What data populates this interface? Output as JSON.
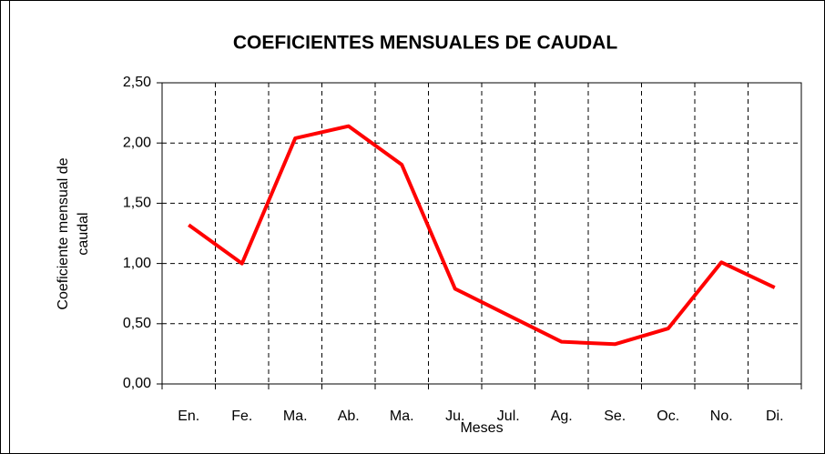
{
  "chart_data": {
    "type": "line",
    "title": "COEFICIENTES MENSUALES DE CAUDAL",
    "y_label": [
      "Coeficiente mensual de",
      "caudal"
    ],
    "x_label": "Meses",
    "categories": [
      "En.",
      "Fe.",
      "Ma.",
      "Ab.",
      "Ma.",
      "Ju.",
      "Jul.",
      "Ag.",
      "Se.",
      "Oc.",
      "No.",
      "Di."
    ],
    "values": [
      1.32,
      1.0,
      2.04,
      2.14,
      1.82,
      0.79,
      0.57,
      0.35,
      0.33,
      0.46,
      1.01,
      0.8
    ],
    "color": "#ff0000",
    "ylim": [
      0,
      2.5
    ],
    "yticks": [
      {
        "value": 0,
        "label": "0,00"
      },
      {
        "value": 0.5,
        "label": "0,50"
      },
      {
        "value": 1,
        "label": "1,00"
      },
      {
        "value": 1.5,
        "label": "1,50"
      },
      {
        "value": 2,
        "label": "2,00"
      },
      {
        "value": 2.5,
        "label": "2,50"
      }
    ],
    "grid": true
  }
}
